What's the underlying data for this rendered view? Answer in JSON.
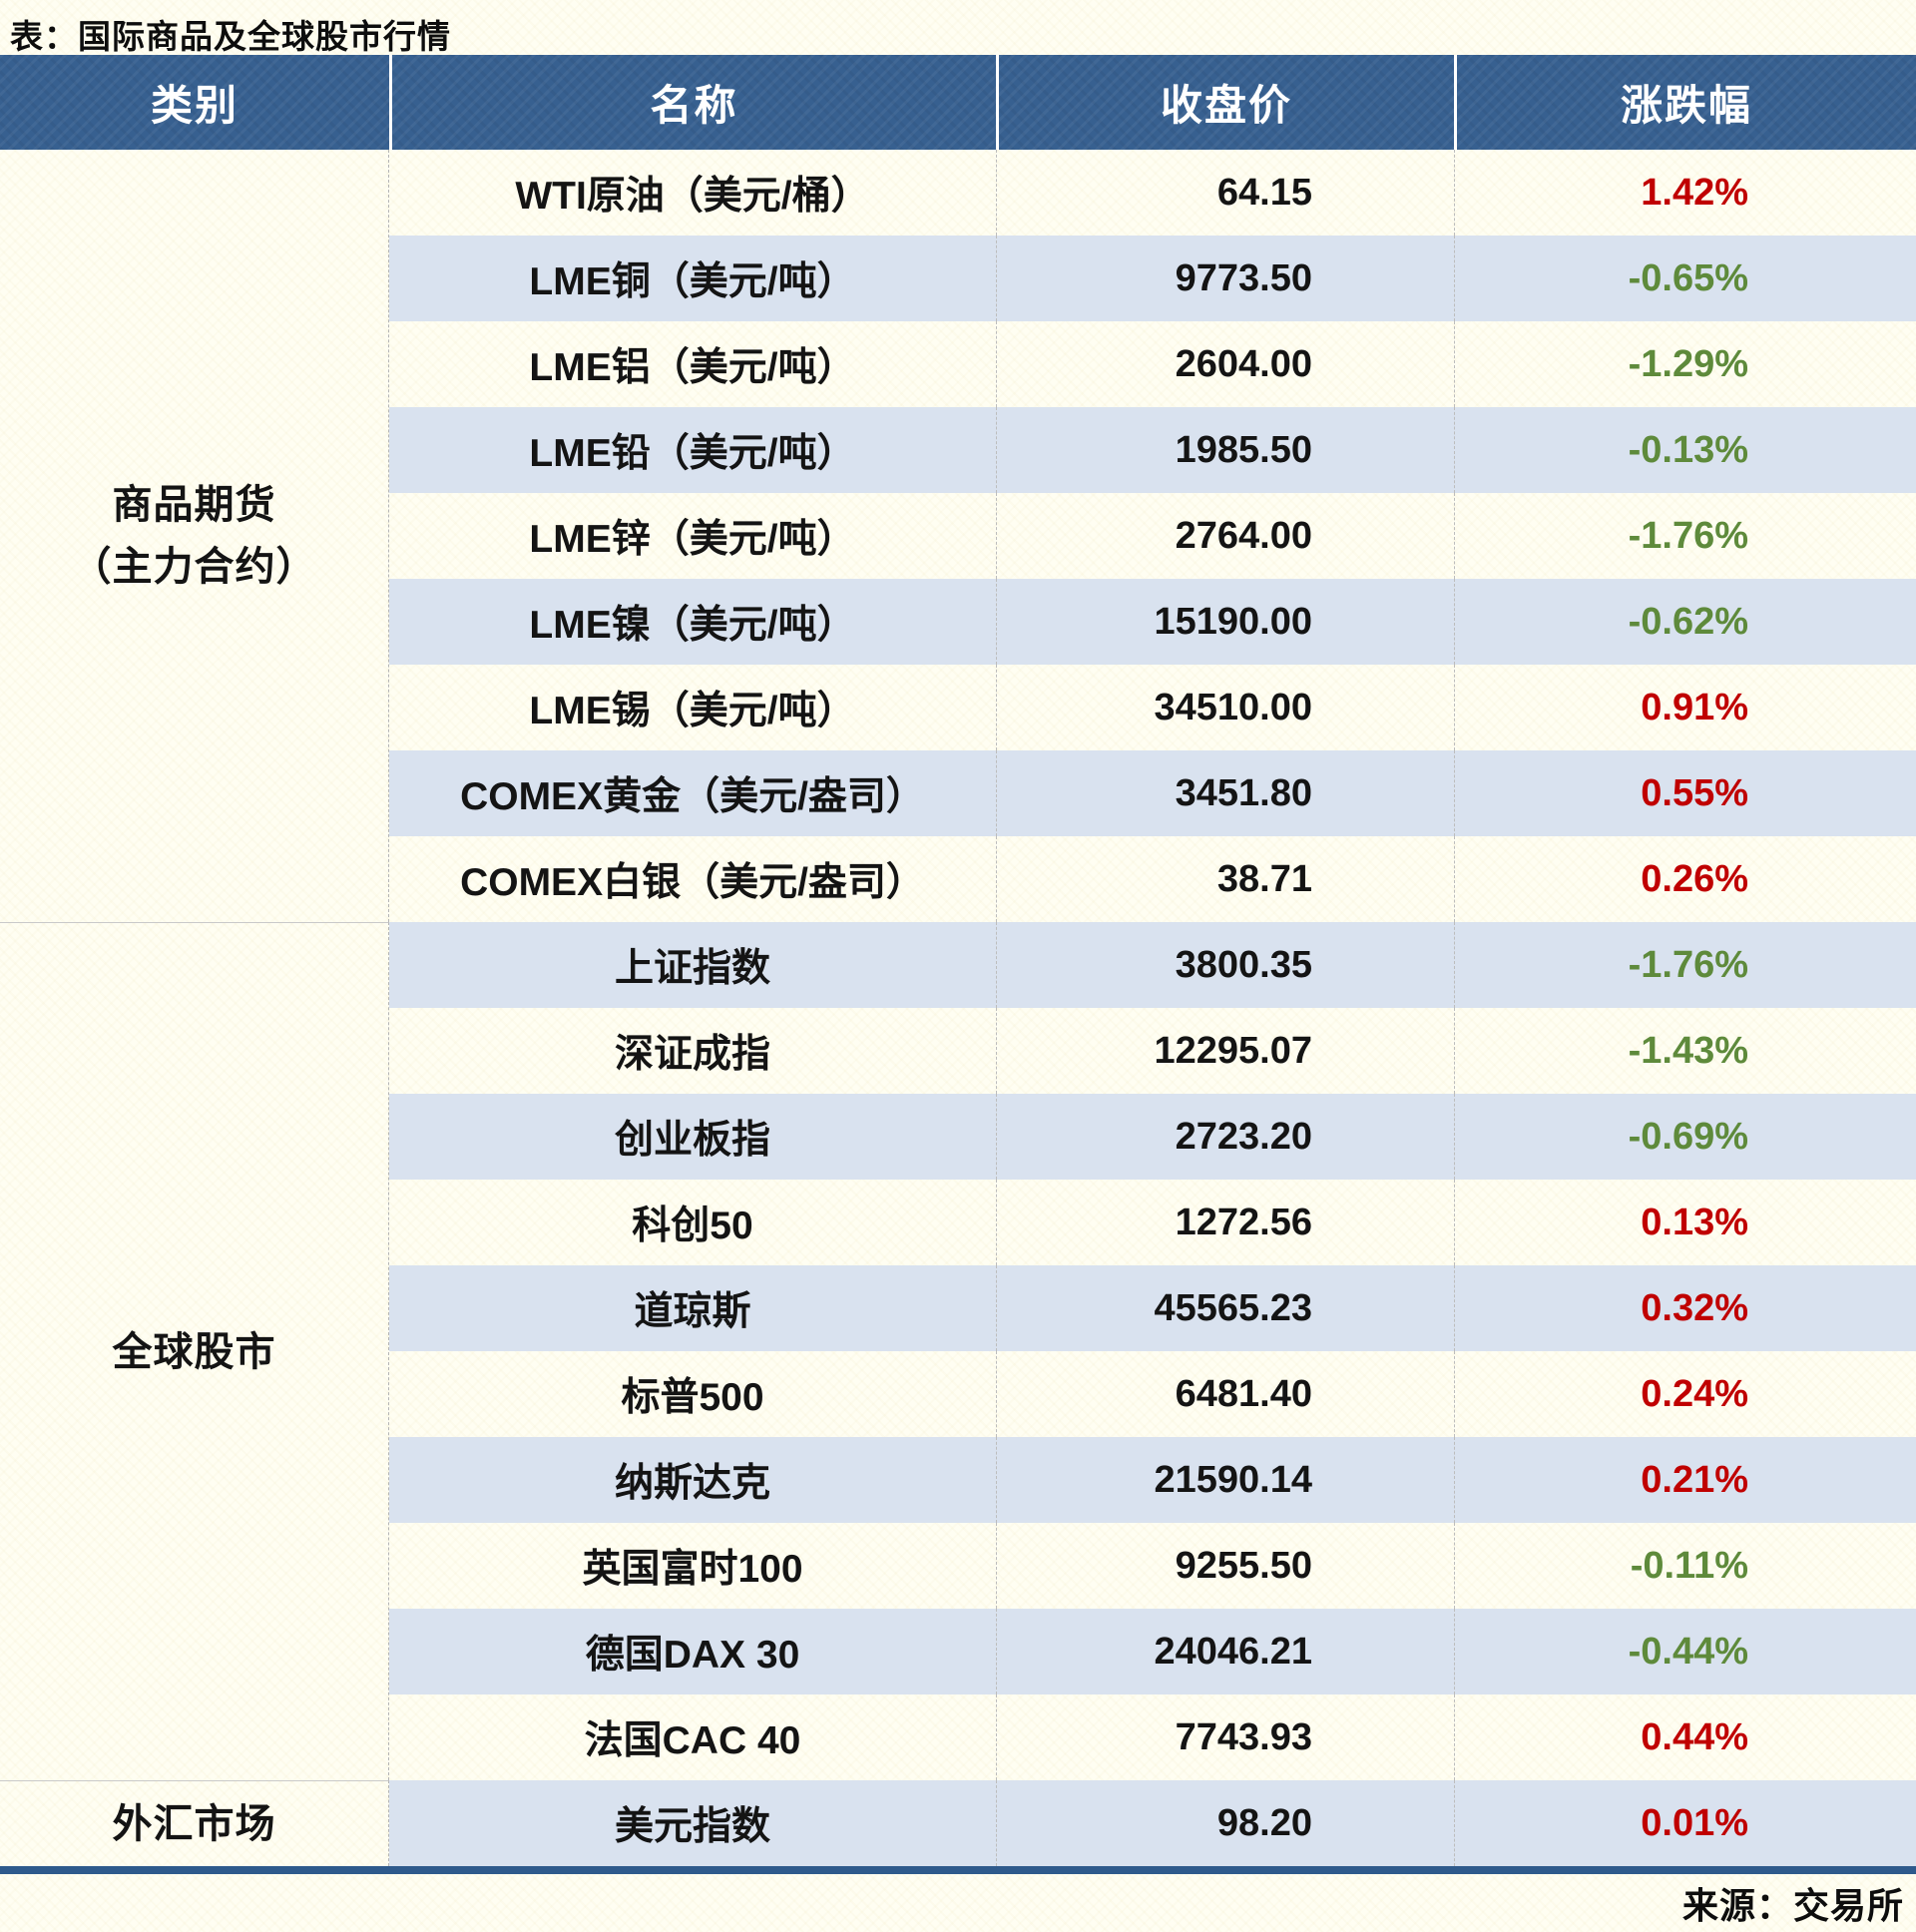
{
  "title": "表：国际商品及全球股市行情",
  "footer": "来源：交易所",
  "columns": [
    "类别",
    "名称",
    "收盘价",
    "涨跌幅"
  ],
  "colors": {
    "header_bg": "#376090",
    "stripe": "#D9E2EF",
    "cream": "#FFFEF2",
    "up": "#C00000",
    "down": "#5E8A3B",
    "bottom_bar": "#2E5A8C"
  },
  "groups": [
    {
      "lines": [
        "商品期货",
        "（主力合约）"
      ],
      "rows": [
        {
          "name": "WTI原油（美元/桶）",
          "close": "64.15",
          "change": "1.42%",
          "dir": "up"
        },
        {
          "name": "LME铜（美元/吨）",
          "close": "9773.50",
          "change": "-0.65%",
          "dir": "down"
        },
        {
          "name": "LME铝（美元/吨）",
          "close": "2604.00",
          "change": "-1.29%",
          "dir": "down"
        },
        {
          "name": "LME铅（美元/吨）",
          "close": "1985.50",
          "change": "-0.13%",
          "dir": "down"
        },
        {
          "name": "LME锌（美元/吨）",
          "close": "2764.00",
          "change": "-1.76%",
          "dir": "down"
        },
        {
          "name": "LME镍（美元/吨）",
          "close": "15190.00",
          "change": "-0.62%",
          "dir": "down"
        },
        {
          "name": "LME锡（美元/吨）",
          "close": "34510.00",
          "change": "0.91%",
          "dir": "up"
        },
        {
          "name": "COMEX黄金（美元/盎司）",
          "close": "3451.80",
          "change": "0.55%",
          "dir": "up"
        },
        {
          "name": "COMEX白银（美元/盎司）",
          "close": "38.71",
          "change": "0.26%",
          "dir": "up"
        }
      ]
    },
    {
      "lines": [
        "全球股市"
      ],
      "rows": [
        {
          "name": "上证指数",
          "close": "3800.35",
          "change": "-1.76%",
          "dir": "down"
        },
        {
          "name": "深证成指",
          "close": "12295.07",
          "change": "-1.43%",
          "dir": "down"
        },
        {
          "name": "创业板指",
          "close": "2723.20",
          "change": "-0.69%",
          "dir": "down"
        },
        {
          "name": "科创50",
          "close": "1272.56",
          "change": "0.13%",
          "dir": "up"
        },
        {
          "name": "道琼斯",
          "close": "45565.23",
          "change": "0.32%",
          "dir": "up"
        },
        {
          "name": "标普500",
          "close": "6481.40",
          "change": "0.24%",
          "dir": "up"
        },
        {
          "name": "纳斯达克",
          "close": "21590.14",
          "change": "0.21%",
          "dir": "up"
        },
        {
          "name": "英国富时100",
          "close": "9255.50",
          "change": "-0.11%",
          "dir": "down"
        },
        {
          "name": "德国DAX 30",
          "close": "24046.21",
          "change": "-0.44%",
          "dir": "down"
        },
        {
          "name": "法国CAC 40",
          "close": "7743.93",
          "change": "0.44%",
          "dir": "up"
        }
      ]
    },
    {
      "lines": [
        "外汇市场"
      ],
      "rows": [
        {
          "name": "美元指数",
          "close": "98.20",
          "change": "0.01%",
          "dir": "up"
        }
      ]
    }
  ],
  "chart_data": {
    "type": "table",
    "title": "表：国际商品及全球股市行情",
    "columns": [
      "类别",
      "名称",
      "收盘价",
      "涨跌幅"
    ],
    "rows": [
      [
        "商品期货（主力合约）",
        "WTI原油（美元/桶）",
        64.15,
        "1.42%"
      ],
      [
        "商品期货（主力合约）",
        "LME铜（美元/吨）",
        9773.5,
        "-0.65%"
      ],
      [
        "商品期货（主力合约）",
        "LME铝（美元/吨）",
        2604.0,
        "-1.29%"
      ],
      [
        "商品期货（主力合约）",
        "LME铅（美元/吨）",
        1985.5,
        "-0.13%"
      ],
      [
        "商品期货（主力合约）",
        "LME锌（美元/吨）",
        2764.0,
        "-1.76%"
      ],
      [
        "商品期货（主力合约）",
        "LME镍（美元/吨）",
        15190.0,
        "-0.62%"
      ],
      [
        "商品期货（主力合约）",
        "LME锡（美元/吨）",
        34510.0,
        "0.91%"
      ],
      [
        "商品期货（主力合约）",
        "COMEX黄金（美元/盎司）",
        3451.8,
        "0.55%"
      ],
      [
        "商品期货（主力合约）",
        "COMEX白银（美元/盎司）",
        38.71,
        "0.26%"
      ],
      [
        "全球股市",
        "上证指数",
        3800.35,
        "-1.76%"
      ],
      [
        "全球股市",
        "深证成指",
        12295.07,
        "-1.43%"
      ],
      [
        "全球股市",
        "创业板指",
        2723.2,
        "-0.69%"
      ],
      [
        "全球股市",
        "科创50",
        1272.56,
        "0.13%"
      ],
      [
        "全球股市",
        "道琼斯",
        45565.23,
        "0.32%"
      ],
      [
        "全球股市",
        "标普500",
        6481.4,
        "0.24%"
      ],
      [
        "全球股市",
        "纳斯达克",
        21590.14,
        "0.21%"
      ],
      [
        "全球股市",
        "英国富时100",
        9255.5,
        "-0.11%"
      ],
      [
        "全球股市",
        "德国DAX 30",
        24046.21,
        "-0.44%"
      ],
      [
        "全球股市",
        "法国CAC 40",
        7743.93,
        "0.44%"
      ],
      [
        "外汇市场",
        "美元指数",
        98.2,
        "0.01%"
      ]
    ],
    "legend_note": "red = 上涨(up), olive-green = 下跌(down)"
  }
}
